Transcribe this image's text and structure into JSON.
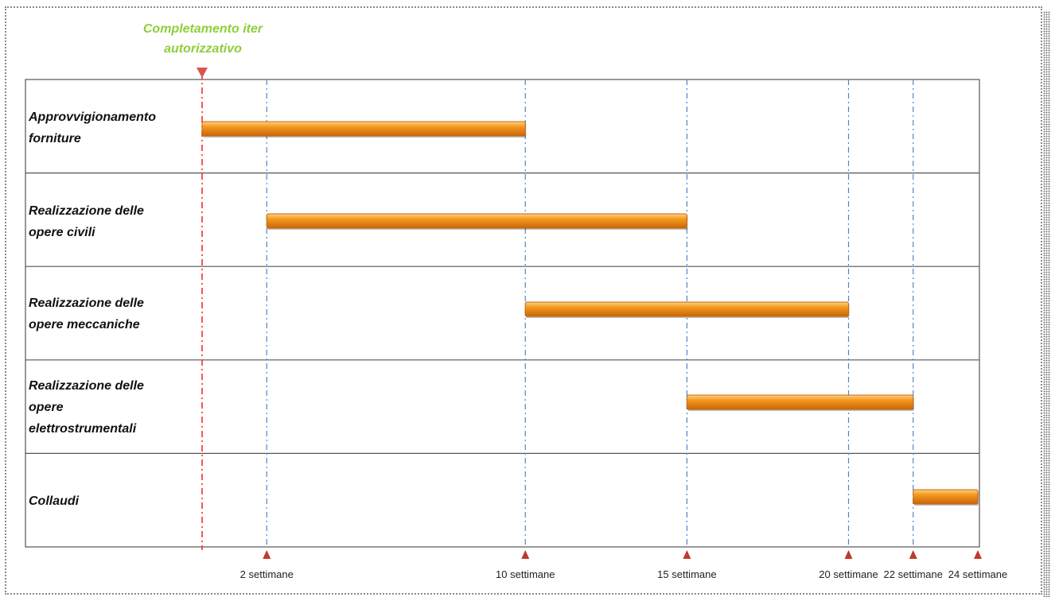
{
  "milestone": {
    "title_lines": [
      "Completamento iter",
      "autorizzativo"
    ],
    "color": "#ff2a2a",
    "title_color": "#8fce3a"
  },
  "chart_data": {
    "type": "gantt",
    "x_unit": "settimane",
    "x_range": [
      0,
      24
    ],
    "milestone_week": 0,
    "ticks": [
      {
        "week": 2,
        "label": "2 settimane"
      },
      {
        "week": 10,
        "label": "10 settimane"
      },
      {
        "week": 15,
        "label": "15 settimane"
      },
      {
        "week": 20,
        "label": "20 settimane"
      },
      {
        "week": 22,
        "label": "22 settimane"
      },
      {
        "week": 24,
        "label": "24 settimane"
      }
    ],
    "tasks": [
      {
        "label_lines": [
          "Approvvigionamento",
          "forniture"
        ],
        "start": 0,
        "end": 10
      },
      {
        "label_lines": [
          "Realizzazione delle",
          "opere civili"
        ],
        "start": 2,
        "end": 15
      },
      {
        "label_lines": [
          "Realizzazione delle",
          "opere meccaniche"
        ],
        "start": 10,
        "end": 20
      },
      {
        "label_lines": [
          "Realizzazione delle",
          "opere",
          "elettrostrumentali"
        ],
        "start": 15,
        "end": 22
      },
      {
        "label_lines": [
          "Collaudi"
        ],
        "start": 22,
        "end": 24
      }
    ],
    "colors": {
      "bar": "#f59a1e",
      "bar_dark": "#c9660a",
      "bar_light": "#fdd38a",
      "gridline": "#4b86c9",
      "tick_marker": "#c0392b",
      "row_border": "#555555"
    }
  }
}
